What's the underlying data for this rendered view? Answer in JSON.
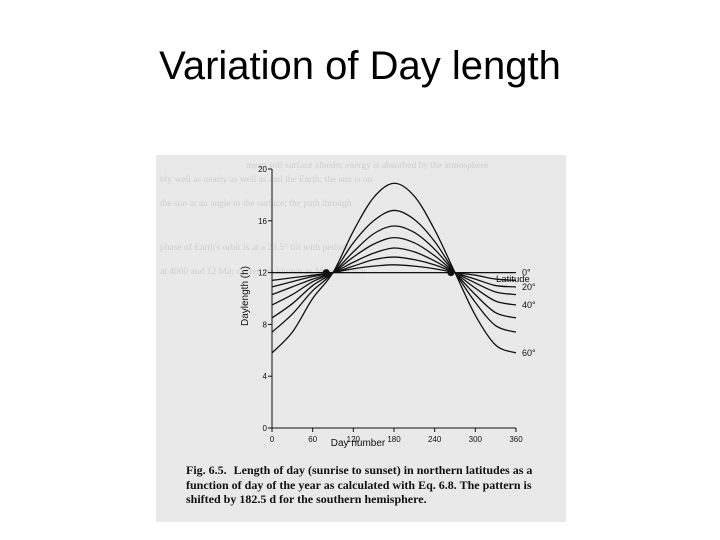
{
  "slide": {
    "title": "Variation of Day length"
  },
  "figure": {
    "caption_number": "Fig. 6.5.",
    "caption_text": "Length of day (sunrise to sunset) in northern latitudes as a function of day of the year as calculated with Eq. 6.8. The pattern is shifted by 182.5 d for the southern hemisphere."
  },
  "chart_data": {
    "type": "line",
    "xlabel": "Day number",
    "ylabel": "Daylength (h)",
    "xlim": [
      0,
      360
    ],
    "ylim": [
      0,
      20
    ],
    "xticks": [
      0,
      60,
      120,
      180,
      240,
      300,
      360
    ],
    "yticks": [
      0,
      4,
      8,
      12,
      16,
      20
    ],
    "x": [
      0,
      30,
      60,
      90,
      120,
      150,
      180,
      210,
      240,
      270,
      300,
      330,
      360
    ],
    "legend_title": "Latitude",
    "series": [
      {
        "name": "0°",
        "values": [
          12.0,
          12.0,
          12.0,
          12.0,
          12.0,
          12.0,
          12.0,
          12.0,
          12.0,
          12.0,
          12.0,
          12.0,
          12.0
        ]
      },
      {
        "name": "",
        "values": [
          11.4,
          11.6,
          11.8,
          12.0,
          12.3,
          12.5,
          12.6,
          12.5,
          12.3,
          12.0,
          11.8,
          11.5,
          11.4
        ]
      },
      {
        "name": "20°",
        "values": [
          10.9,
          11.3,
          11.7,
          12.0,
          12.5,
          13.0,
          13.2,
          13.0,
          12.6,
          12.0,
          11.5,
          11.0,
          10.9
        ]
      },
      {
        "name": "",
        "values": [
          10.3,
          10.9,
          11.5,
          12.0,
          12.8,
          13.5,
          13.9,
          13.6,
          12.9,
          12.0,
          11.2,
          10.5,
          10.3
        ]
      },
      {
        "name": "40°",
        "values": [
          9.5,
          10.3,
          11.3,
          12.0,
          13.2,
          14.2,
          14.7,
          14.3,
          13.3,
          12.0,
          10.8,
          9.8,
          9.5
        ]
      },
      {
        "name": "",
        "values": [
          8.5,
          9.6,
          11.0,
          12.0,
          13.6,
          15.0,
          15.6,
          15.1,
          13.8,
          12.0,
          10.3,
          8.9,
          8.5
        ]
      },
      {
        "name": "",
        "values": [
          7.4,
          8.8,
          10.6,
          12.0,
          14.3,
          16.0,
          16.8,
          16.1,
          14.4,
          12.0,
          9.7,
          7.9,
          7.4
        ]
      },
      {
        "name": "60°",
        "values": [
          5.8,
          7.4,
          10.0,
          12.0,
          15.2,
          17.8,
          18.9,
          17.9,
          15.3,
          12.0,
          8.7,
          6.4,
          5.8
        ]
      }
    ],
    "intersection_days": [
      80,
      264
    ],
    "grid": false
  }
}
